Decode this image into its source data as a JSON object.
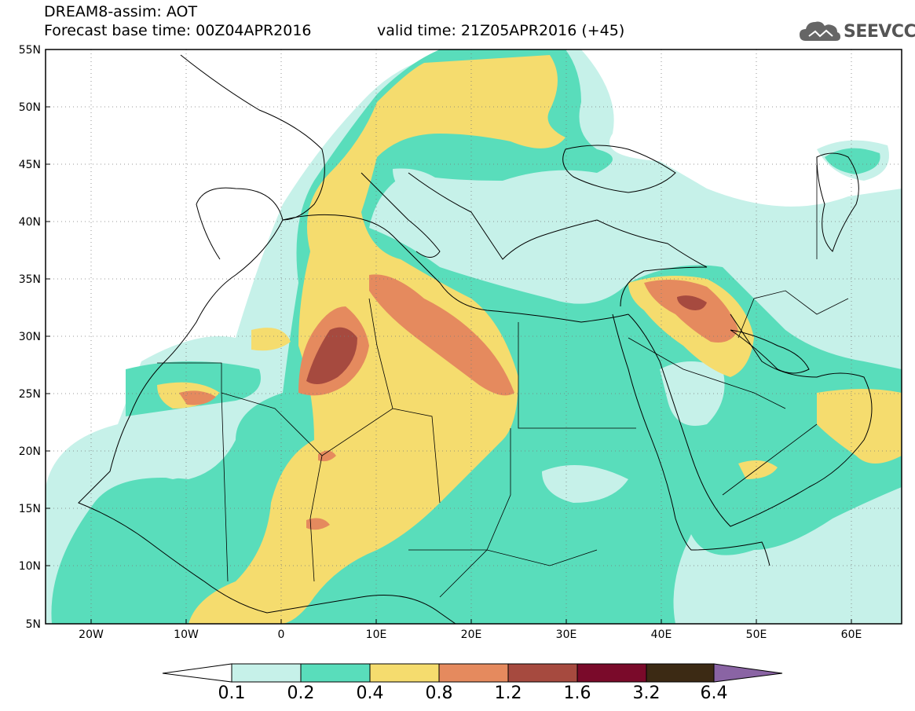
{
  "title_line1": "DREAM8-assim: AOT",
  "title_line2a": "Forecast base time: 00Z04APR2016",
  "title_line2b": "valid time: 21Z05APR2016 (+45)",
  "logo_text": "SEEVCCC",
  "logo_icon": "cloud-icon",
  "lat_labels": [
    "55N",
    "50N",
    "45N",
    "40N",
    "35N",
    "30N",
    "25N",
    "20N",
    "15N",
    "10N",
    "5N"
  ],
  "lon_labels": [
    "20W",
    "10W",
    "0",
    "10E",
    "20E",
    "30E",
    "40E",
    "50E",
    "60E"
  ],
  "colorbar": {
    "labels": [
      "0.1",
      "0.2",
      "0.4",
      "0.8",
      "1.2",
      "1.6",
      "3.2",
      "6.4"
    ],
    "colors": [
      "#ffffff",
      "#c6f1e9",
      "#59ddbb",
      "#f5dc6e",
      "#e58a5e",
      "#a64a3f",
      "#7a0a2a",
      "#3c2a14",
      "#8a64a4"
    ]
  }
}
